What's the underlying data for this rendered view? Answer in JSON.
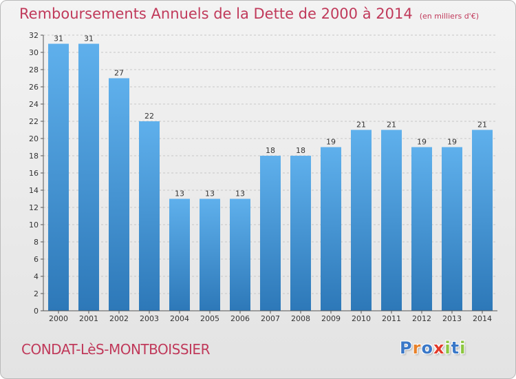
{
  "header": {
    "title": "Remboursements Annuels de la Dette de 2000 à 2014",
    "subtitle": "(en milliers d'€)"
  },
  "footer": {
    "place": "CONDAT-LèS-MONTBOISSIER",
    "logo": [
      "P",
      "r",
      "o",
      "x",
      "i",
      "t",
      "i"
    ],
    "logo_colors": [
      "#3a78c8",
      "#e8812a",
      "#3a78c8",
      "#e23a2a",
      "#8cc63f",
      "#3a78c8",
      "#8cc63f"
    ]
  },
  "colors": {
    "bar_light": "#5fb0ec",
    "bar_dark": "#2d78b8",
    "title": "#c0395a"
  },
  "chart_data": {
    "type": "bar",
    "title": "Remboursements Annuels de la Dette de 2000 à 2014",
    "subtitle": "(en milliers d'€)",
    "categories": [
      "2000",
      "2001",
      "2002",
      "2003",
      "2004",
      "2005",
      "2006",
      "2007",
      "2008",
      "2009",
      "2010",
      "2011",
      "2012",
      "2013",
      "2014"
    ],
    "values": [
      31,
      31,
      27,
      22,
      13,
      13,
      13,
      18,
      18,
      19,
      21,
      21,
      19,
      19,
      21
    ],
    "ylim": [
      0,
      32
    ],
    "yticks": [
      0,
      2,
      4,
      6,
      8,
      10,
      12,
      14,
      16,
      18,
      20,
      22,
      24,
      26,
      28,
      30,
      32
    ],
    "grid": "horizontal dashed"
  }
}
